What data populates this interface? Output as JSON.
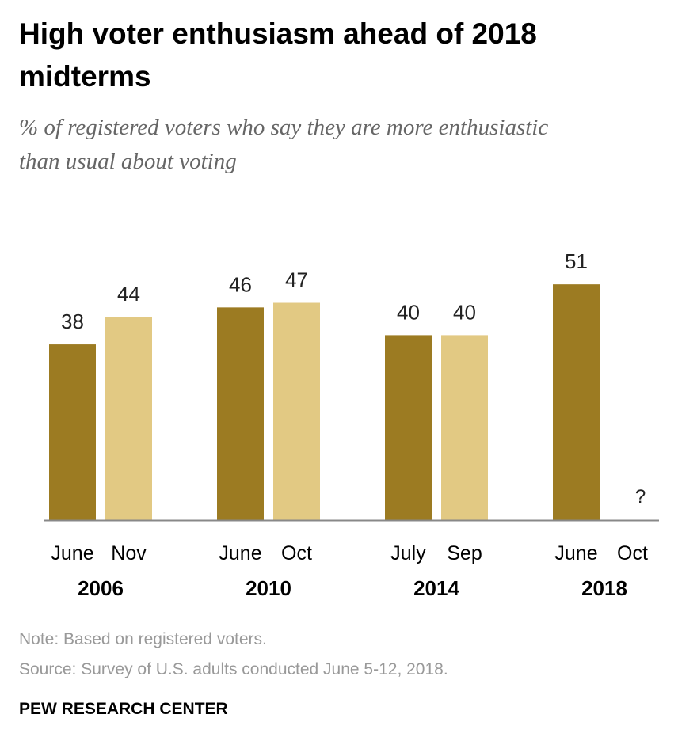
{
  "chart_data": {
    "type": "bar",
    "title": "High voter enthusiasm ahead of 2018 midterms",
    "subtitle": "% of registered voters who say they are more enthusiastic than usual about voting",
    "groups": [
      {
        "year": "2006",
        "bars": [
          {
            "label": "June",
            "value": 38,
            "shade": "dark"
          },
          {
            "label": "Nov",
            "value": 44,
            "shade": "light"
          }
        ]
      },
      {
        "year": "2010",
        "bars": [
          {
            "label": "June",
            "value": 46,
            "shade": "dark"
          },
          {
            "label": "Oct",
            "value": 47,
            "shade": "light"
          }
        ]
      },
      {
        "year": "2014",
        "bars": [
          {
            "label": "July",
            "value": 40,
            "shade": "dark"
          },
          {
            "label": "Sep",
            "value": 40,
            "shade": "light"
          }
        ]
      },
      {
        "year": "2018",
        "bars": [
          {
            "label": "June",
            "value": 51,
            "shade": "dark"
          },
          {
            "label": "Oct",
            "value": null,
            "value_label": "?",
            "shade": "light"
          }
        ]
      }
    ],
    "ylim": [
      0,
      55
    ],
    "grid": false,
    "colors": {
      "dark": "#9c7b22",
      "light": "#e2c983"
    }
  },
  "note": "Note: Based on registered voters.",
  "source": "Source: Survey of U.S. adults conducted June 5-12, 2018.",
  "brand": "PEW RESEARCH CENTER"
}
